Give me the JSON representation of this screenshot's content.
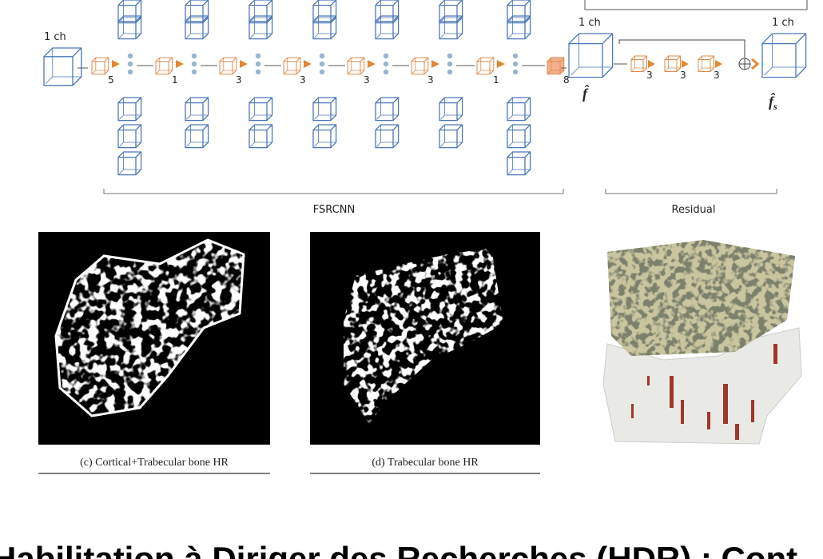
{
  "diagram": {
    "input_channels": "1 ch",
    "kernels": [
      "5",
      "1",
      "3",
      "3",
      "3",
      "3",
      "1",
      "8"
    ],
    "output_channels": "1 ch",
    "output_label": "f̂",
    "residual": {
      "channels": "1 ch",
      "kernels": [
        "3",
        "3",
        "3"
      ],
      "output_label": "f̂",
      "output_subscript": "s"
    },
    "sections": [
      "FSRCNN",
      "Residual"
    ]
  },
  "figures": [
    {
      "caption": "(c) Cortical+Trabecular bone HR"
    },
    {
      "caption": "(d) Trabecular bone HR"
    }
  ],
  "footer": {
    "title": "Habilitation à Diriger des Recherches (HDR) : Cont"
  }
}
